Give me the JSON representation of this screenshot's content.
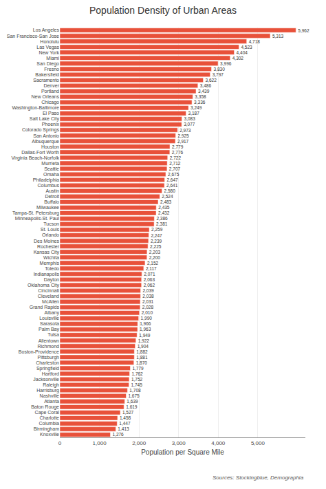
{
  "chart_data": {
    "type": "bar",
    "orientation": "horizontal",
    "title": "Population Density of Urban Areas",
    "xlabel": "Population per Square Mile",
    "source": "Sources: Stockingblue, Demographia",
    "color": "#e8513a",
    "grid": true,
    "categories": [
      "Los Angeles",
      "San Francisco-San Jose",
      "Honolulu",
      "Las Vegas",
      "New York",
      "Miami",
      "San Diego",
      "Fresno",
      "Bakersfield",
      "Sacramento",
      "Denver",
      "Portland",
      "New Orleans",
      "Chicago",
      "Washington-Baltimore",
      "El Paso",
      "Salt Lake City",
      "Phoenix",
      "Colorado Springs",
      "San Antonio",
      "Albuquerque",
      "Houston",
      "Dallas-Fort Worth",
      "Virginia Beach-Norfolk",
      "Murrieta",
      "Seattle",
      "Omaha",
      "Philadelphia",
      "Columbus",
      "Austin",
      "Detroit",
      "Buffalo",
      "Milwaukee",
      "Tampa-St. Petersburg",
      "Minneapolis-St. Paul",
      "Tucson",
      "St. Louis",
      "Orlando",
      "Des Moines",
      "Rochester",
      "Kansas City",
      "Wichita",
      "Memphis",
      "Toledo",
      "Indianapolis",
      "Dayton",
      "Oklahoma City",
      "Cincinnati",
      "Cleveland",
      "McAllen",
      "Grand Rapids",
      "Albany",
      "Louisville",
      "Sarasota",
      "Palm Bay",
      "Tulsa",
      "Allentown",
      "Richmond",
      "Boston-Providence",
      "Pittsburgh",
      "Charleston",
      "Springfield",
      "Hartford",
      "Jacksonville",
      "Raleigh",
      "Harrisburg",
      "Nashville",
      "Atlanta",
      "Baton Rouge",
      "Cape Coral",
      "Charlotte",
      "Columbia",
      "Birmingham",
      "Knoxville"
    ],
    "values": [
      5962,
      5313,
      4718,
      4523,
      4404,
      4302,
      3996,
      3830,
      3797,
      3622,
      3486,
      3439,
      3358,
      3336,
      3249,
      3187,
      3083,
      3077,
      2973,
      2925,
      2917,
      2779,
      2776,
      2722,
      2712,
      2707,
      2675,
      2647,
      2641,
      2580,
      2524,
      2483,
      2435,
      2432,
      2386,
      2381,
      2259,
      2247,
      2239,
      2225,
      2203,
      2200,
      2152,
      2117,
      2071,
      2063,
      2062,
      2039,
      2038,
      2031,
      2028,
      2010,
      1990,
      1966,
      1963,
      1949,
      1922,
      1904,
      1882,
      1881,
      1870,
      1779,
      1762,
      1752,
      1745,
      1708,
      1675,
      1639,
      1619,
      1527,
      1458,
      1447,
      1413,
      1276
    ],
    "value_labels": [
      "5,962",
      "5,313",
      "4,718",
      "4,523",
      "4,404",
      "4,302",
      "3,996",
      "3,830",
      "3,797",
      "3,622",
      "3,486",
      "3,439",
      "3,358",
      "3,336",
      "3,249",
      "3,187",
      "3,083",
      "3,077",
      "2,973",
      "2,925",
      "2,917",
      "2,779",
      "2,776",
      "2,722",
      "2,712",
      "2,707",
      "2,675",
      "2,647",
      "2,641",
      "2,580",
      "2,524",
      "2,483",
      "2,435",
      "2,432",
      "2,386",
      "2,381",
      "2,259",
      "2,247",
      "2,239",
      "2,225",
      "2,203",
      "2,200",
      "2,152",
      "2,117",
      "2,071",
      "2,063",
      "2,062",
      "2,039",
      "2,038",
      "2,031",
      "2,028",
      "2,010",
      "1,990",
      "1,966",
      "1,963",
      "1,949",
      "1,922",
      "1,904",
      "1,882",
      "1,881",
      "1,870",
      "1,779",
      "1,762",
      "1,752",
      "1,745",
      "1,708",
      "1,675",
      "1,639",
      "1,619",
      "1,527",
      "1,458",
      "1,447",
      "1,413",
      "1,276"
    ],
    "xlim": [
      0,
      6200
    ],
    "xticks": [
      0,
      {
        "value": 1000,
        "label": "1,000"
      },
      {
        "value": 2000,
        "label": "2,000"
      },
      {
        "value": 3000,
        "label": "3,000"
      },
      {
        "value": 4000,
        "label": "4,000"
      },
      {
        "value": 5000,
        "label": "5,000"
      }
    ]
  }
}
